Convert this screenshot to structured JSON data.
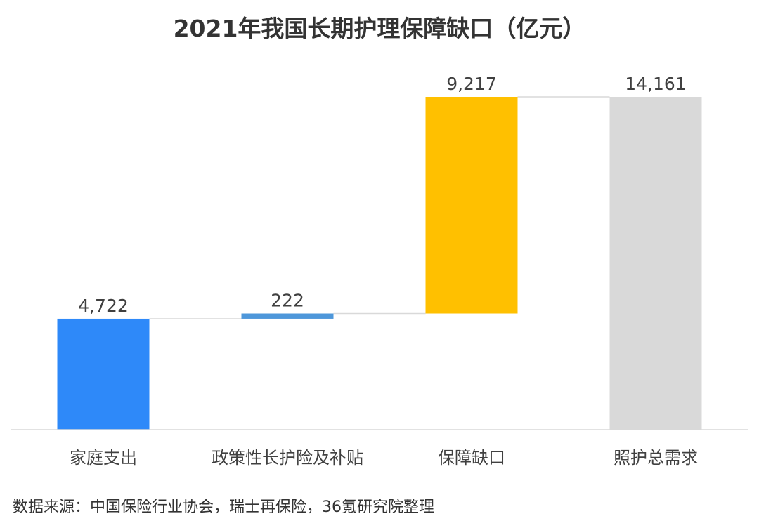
{
  "chart_data": {
    "type": "bar",
    "subtype": "waterfall",
    "title": "2021年我国长期护理保障缺口（亿元）",
    "categories": [
      "家庭支出",
      "政策性长护险及补贴",
      "保障缺口",
      "照护总需求"
    ],
    "values": [
      4722,
      222,
      9217,
      14161
    ],
    "value_labels": [
      "4,722",
      "222",
      "9,217",
      "14,161"
    ],
    "steps": [
      "increase",
      "increase",
      "increase",
      "total"
    ],
    "colors": [
      "#2E89F9",
      "#4E97DA",
      "#FFC000",
      "#D9D9D9"
    ],
    "ylim": [
      0,
      14161
    ],
    "grid": false,
    "legend": "none",
    "xlabel": "",
    "ylabel": ""
  },
  "source": "数据来源：中国保险行业协会，瑞士再保险，36氪研究院整理"
}
